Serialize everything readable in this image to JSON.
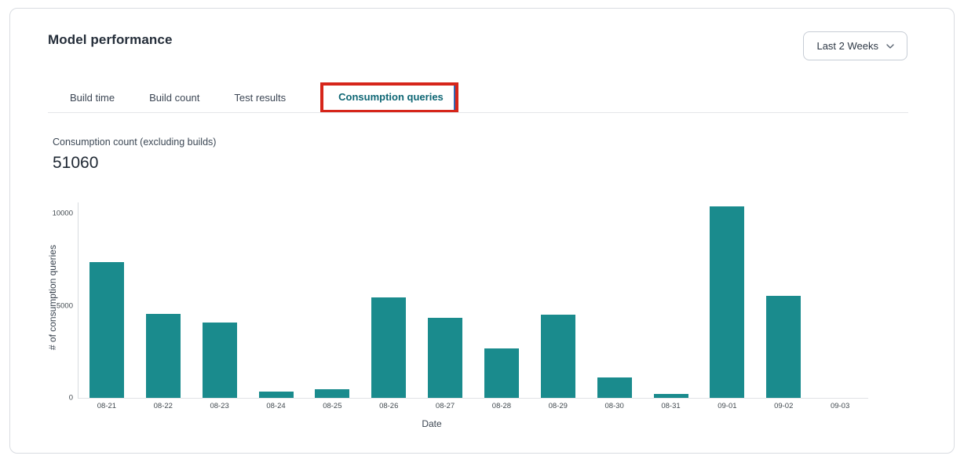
{
  "header": {
    "title": "Model performance",
    "range_selector": {
      "label": "Last 2 Weeks",
      "icon": "chevron-down-icon"
    }
  },
  "tabs": {
    "items": [
      {
        "label": "Build time",
        "active": false
      },
      {
        "label": "Build count",
        "active": false
      },
      {
        "label": "Test results",
        "active": false
      },
      {
        "label": "Consumption queries",
        "active": true,
        "annotated": true
      }
    ]
  },
  "metric": {
    "label": "Consumption count (excluding builds)",
    "value": "51060"
  },
  "chart_data": {
    "type": "bar",
    "title": "",
    "categories": [
      "08-21",
      "08-22",
      "08-23",
      "08-24",
      "08-25",
      "08-26",
      "08-27",
      "08-28",
      "08-29",
      "08-30",
      "08-31",
      "09-01",
      "09-02",
      "09-03"
    ],
    "values": [
      7350,
      4550,
      4100,
      350,
      480,
      5450,
      4350,
      2700,
      4500,
      1100,
      200,
      10400,
      5530,
      0
    ],
    "xlabel": "Date",
    "ylabel": "# of consumption queries",
    "ylim": [
      0,
      10600
    ],
    "yticks": [
      0,
      5000,
      10000
    ],
    "grid": false,
    "legend": false,
    "bar_color": "#1a8b8d"
  },
  "colors": {
    "bar": "#1a8b8d",
    "tab_active_text": "#0e6674",
    "annotation_box": "#d6251a",
    "card_border": "#d9dce1"
  }
}
